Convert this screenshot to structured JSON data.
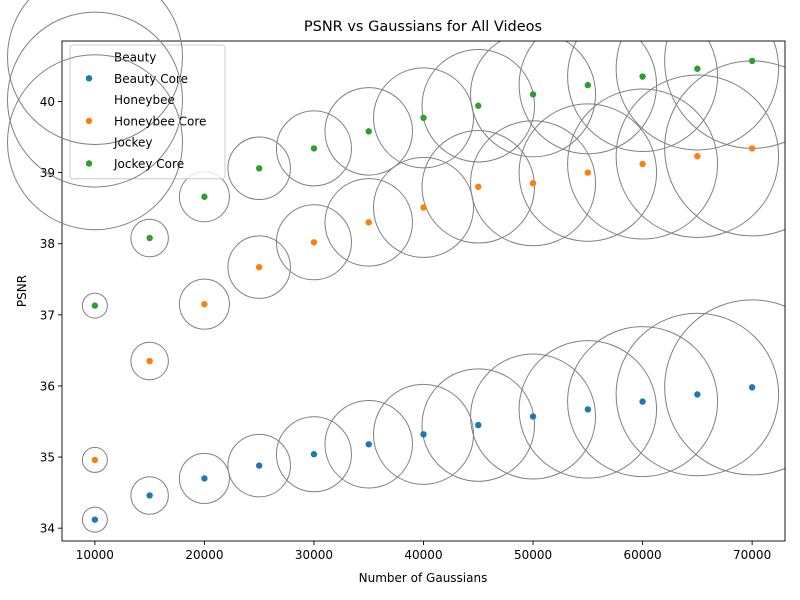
{
  "chart_data": {
    "type": "scatter",
    "title": "PSNR vs Gaussians for All Videos",
    "xlabel": "Number of Gaussians",
    "ylabel": "PSNR",
    "xlim": [
      7000,
      73000
    ],
    "ylim": [
      33.82,
      40.85
    ],
    "xticks": [
      10000,
      20000,
      30000,
      40000,
      50000,
      60000,
      70000
    ],
    "yticks": [
      34,
      35,
      36,
      37,
      38,
      39,
      40
    ],
    "grid": false,
    "legend_position": "top-left",
    "x": [
      10000,
      15000,
      20000,
      25000,
      30000,
      35000,
      40000,
      45000,
      50000,
      55000,
      60000,
      65000,
      70000
    ],
    "series": [
      {
        "name": "Beauty",
        "kind": "bubble",
        "color": "#808080",
        "values": [
          34.12,
          34.46,
          34.7,
          34.88,
          35.04,
          35.18,
          35.32,
          35.45,
          35.57,
          35.67,
          35.78,
          35.88,
          35.98
        ]
      },
      {
        "name": "Beauty Core",
        "kind": "point",
        "color": "#1f77b4",
        "values": [
          34.12,
          34.46,
          34.7,
          34.88,
          35.04,
          35.18,
          35.32,
          35.45,
          35.57,
          35.67,
          35.78,
          35.88,
          35.98
        ]
      },
      {
        "name": "Honeybee",
        "kind": "bubble",
        "color": "#808080",
        "values": [
          34.96,
          36.35,
          37.15,
          37.67,
          38.02,
          38.3,
          38.51,
          38.8,
          38.85,
          39.0,
          39.12,
          39.23,
          39.34
        ]
      },
      {
        "name": "Honeybee Core",
        "kind": "point",
        "color": "#ff7f0e",
        "values": [
          34.96,
          36.35,
          37.15,
          37.67,
          38.02,
          38.3,
          38.51,
          38.8,
          38.85,
          39.0,
          39.12,
          39.23,
          39.34
        ]
      },
      {
        "name": "Jockey",
        "kind": "bubble",
        "color": "#808080",
        "values": [
          37.13,
          38.08,
          38.66,
          39.06,
          39.34,
          39.58,
          39.77,
          39.94,
          40.1,
          40.23,
          40.35,
          40.46,
          40.57
        ]
      },
      {
        "name": "Jockey Core",
        "kind": "point",
        "color": "#2ca02c",
        "values": [
          37.13,
          38.08,
          38.66,
          39.06,
          39.34,
          39.58,
          39.77,
          39.94,
          40.1,
          40.23,
          40.35,
          40.46,
          40.57
        ]
      }
    ]
  }
}
